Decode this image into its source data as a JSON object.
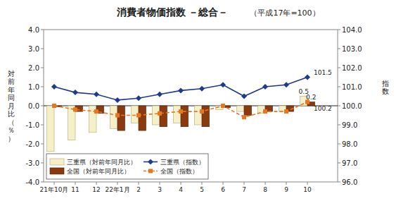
{
  "chart_data": {
    "type": "bar",
    "title": "消費者物価指数 －総合－",
    "subtitle": "（平成17年=100）",
    "y_label": "対前年同月比（％）",
    "y2_label": "指数",
    "categories": [
      "21年10月",
      "11",
      "12",
      "22年1月",
      "2",
      "3",
      "4",
      "5",
      "6",
      "7",
      "8",
      "9",
      "10"
    ],
    "series": [
      {
        "name": "三重県（対前年同月比）",
        "type": "bar",
        "color": "#F5F0C8",
        "values": [
          -2.4,
          -1.8,
          -1.4,
          -1.2,
          -0.9,
          -1.0,
          -0.9,
          -1.0,
          -0.2,
          -0.3,
          -0.4,
          -0.3,
          0.5
        ]
      },
      {
        "name": "全国（対前年同月比）",
        "type": "bar",
        "color": "#8B3A10",
        "values": [
          -0.05,
          -0.3,
          -0.4,
          -1.3,
          -1.3,
          -1.1,
          -1.1,
          -1.1,
          -0.1,
          -0.5,
          -0.3,
          -0.3,
          0.2
        ]
      },
      {
        "name": "三重県（指数）",
        "type": "line",
        "axis": "y2",
        "color": "#1E3A8A",
        "marker": "diamond",
        "line_style": "solid",
        "values": [
          101.0,
          100.7,
          100.6,
          100.3,
          100.4,
          100.6,
          100.8,
          100.9,
          101.1,
          100.5,
          101.0,
          101.1,
          101.5
        ]
      },
      {
        "name": "全国（指数）",
        "type": "line",
        "axis": "y2",
        "color": "#E87520",
        "marker": "square",
        "line_style": "dashed",
        "values": [
          100.0,
          99.8,
          99.7,
          99.5,
          99.5,
          99.6,
          99.7,
          99.7,
          100.0,
          99.4,
          99.7,
          99.7,
          100.2
        ]
      }
    ],
    "ylim": [
      -4.0,
      4.0
    ],
    "yticks": [
      {
        "value": -4.0,
        "label": "-4.0"
      },
      {
        "value": -3.0,
        "label": "-3.0"
      },
      {
        "value": -2.0,
        "label": "-2.0"
      },
      {
        "value": -1.0,
        "label": "-1.0"
      },
      {
        "value": 0.0,
        "label": "0.0"
      },
      {
        "value": 1.0,
        "label": "1.0"
      },
      {
        "value": 2.0,
        "label": "2.0"
      },
      {
        "value": 3.0,
        "label": "3.0"
      },
      {
        "value": 4.0,
        "label": "4.0"
      }
    ],
    "y2lim": [
      96.0,
      104.0
    ],
    "y2ticks": [
      {
        "value": 96.0,
        "label": "96.0"
      },
      {
        "value": 97.0,
        "label": "97.0"
      },
      {
        "value": 98.0,
        "label": "98.0"
      },
      {
        "value": 99.0,
        "label": "99.0"
      },
      {
        "value": 100.0,
        "label": "100.0"
      },
      {
        "value": 101.0,
        "label": "101.0"
      },
      {
        "value": 102.0,
        "label": "102.0"
      },
      {
        "value": 103.0,
        "label": "103.0"
      },
      {
        "value": 104.0,
        "label": "104.0"
      }
    ],
    "annotations": [
      {
        "text": "0.5",
        "series": "三重県（対前年同月比）",
        "category": "10"
      },
      {
        "text": "0.2",
        "series": "全国（対前年同月比）",
        "category": "10"
      },
      {
        "text": "101.5",
        "series": "三重県（指数）",
        "category": "10"
      },
      {
        "text": "100.2",
        "series": "全国（指数）",
        "category": "10"
      }
    ],
    "grid": false,
    "legend": "lower left"
  }
}
